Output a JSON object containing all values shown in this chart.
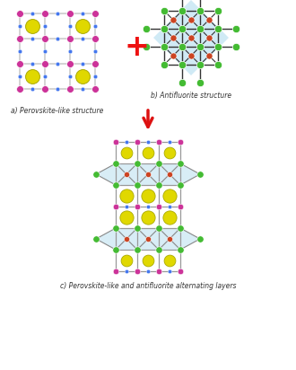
{
  "fig_width": 3.3,
  "fig_height": 4.12,
  "dpi": 100,
  "bg_color": "#ffffff",
  "label_a": "a) Perovskite-like structure",
  "label_b": "b) Antifluorite structure",
  "label_c": "c) Perovskite-like and antifluorite alternating layers",
  "colors": {
    "strontium": "#e0d800",
    "cobalt": "#cc3399",
    "oxygen": "#4477ee",
    "selenium": "#44bb33",
    "copper": "#cc4422",
    "bond_light": "#cccccc",
    "bond_dark": "#555555",
    "bond_gray": "#999999",
    "red_plus": "#ee1111",
    "red_arrow": "#dd1111",
    "antifl_bg": "#b8dff0"
  }
}
